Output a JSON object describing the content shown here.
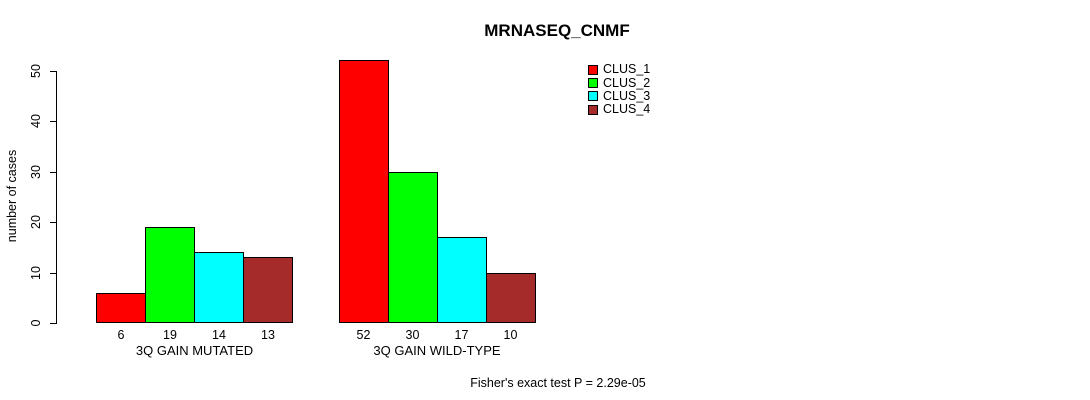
{
  "chart_data": {
    "type": "bar",
    "title": "MRNASEQ_CNMF",
    "xlabel": "",
    "ylabel": "number of cases",
    "ylim": [
      0,
      52
    ],
    "yticks": [
      0,
      10,
      20,
      30,
      40,
      50
    ],
    "grid": false,
    "legend_position": "top-right",
    "bar_value_labels_shown": true,
    "categories": [
      "3Q GAIN MUTATED",
      "3Q GAIN WILD-TYPE"
    ],
    "series": [
      {
        "name": "CLUS_1",
        "color": "#ff0000",
        "values": [
          6,
          52
        ]
      },
      {
        "name": "CLUS_2",
        "color": "#00ff00",
        "values": [
          19,
          30
        ]
      },
      {
        "name": "CLUS_3",
        "color": "#00ffff",
        "values": [
          14,
          17
        ]
      },
      {
        "name": "CLUS_4",
        "color": "#a52a2a",
        "values": [
          13,
          10
        ]
      }
    ],
    "annotation": "Fisher's exact test P = 2.29e-05"
  }
}
